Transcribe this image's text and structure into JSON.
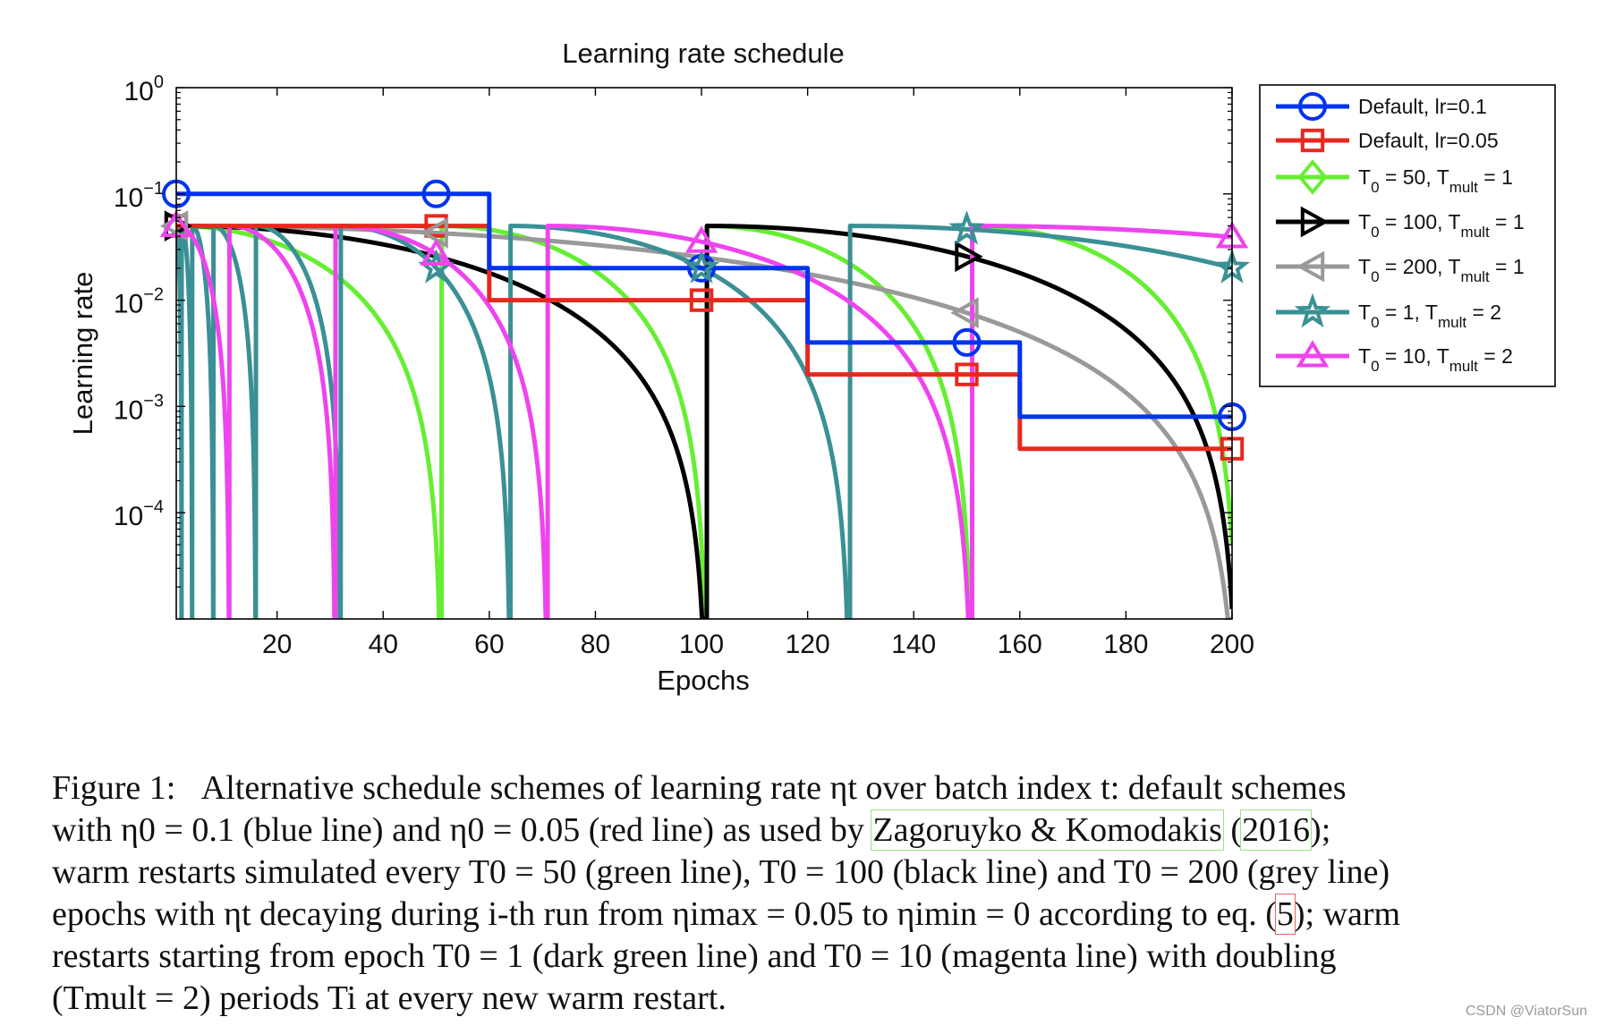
{
  "chart_data": {
    "type": "line",
    "title": "Learning rate schedule",
    "xlabel": "Epochs",
    "ylabel": "Learning rate",
    "xlim": [
      1,
      200
    ],
    "ylim_log10": [
      -5,
      0
    ],
    "yscale": "log",
    "grid": false,
    "legend_position": "outside-right",
    "xticks": [
      "20",
      "40",
      "60",
      "80",
      "100",
      "120",
      "140",
      "160",
      "180",
      "200"
    ],
    "xtick_values": [
      20,
      40,
      60,
      80,
      100,
      120,
      140,
      160,
      180,
      200
    ],
    "yticks": [
      {
        "base": "10",
        "exp": "0",
        "value": 1
      },
      {
        "base": "10",
        "exp": "−1",
        "value": 0.1
      },
      {
        "base": "10",
        "exp": "−2",
        "value": 0.01
      },
      {
        "base": "10",
        "exp": "−3",
        "value": 0.001
      },
      {
        "base": "10",
        "exp": "−4",
        "value": 0.0001
      }
    ],
    "series": [
      {
        "name": "Default, lr=0.1",
        "label_main": "Default, lr=0.1",
        "color": "#0033ee",
        "marker": "circle",
        "kind": "step",
        "steps": [
          [
            1,
            0.1
          ],
          [
            60,
            0.1
          ],
          [
            60,
            0.02
          ],
          [
            120,
            0.02
          ],
          [
            120,
            0.004
          ],
          [
            160,
            0.004
          ],
          [
            160,
            0.0008
          ],
          [
            200,
            0.0008
          ]
        ],
        "markers_at": [
          1,
          50,
          100,
          150,
          200
        ]
      },
      {
        "name": "Default, lr=0.05",
        "label_main": "Default, lr=0.05",
        "color": "#e8281e",
        "marker": "square",
        "kind": "step",
        "steps": [
          [
            1,
            0.05
          ],
          [
            60,
            0.05
          ],
          [
            60,
            0.01
          ],
          [
            120,
            0.01
          ],
          [
            120,
            0.002
          ],
          [
            160,
            0.002
          ],
          [
            160,
            0.0004
          ],
          [
            200,
            0.0004
          ]
        ],
        "markers_at": [
          1,
          50,
          100,
          150,
          200
        ]
      },
      {
        "name": "T0 = 50, Tmult = 1",
        "label_parts": [
          "T",
          "0",
          " = 50, T",
          "mult",
          " = 1"
        ],
        "color": "#66ee33",
        "marker": "diamond",
        "kind": "cosine",
        "eta_max": 0.05,
        "T0": 50,
        "Tmult": 1,
        "markers_at": []
      },
      {
        "name": "T0 = 100, Tmult = 1",
        "label_parts": [
          "T",
          "0",
          " = 100, T",
          "mult",
          " = 1"
        ],
        "color": "#000000",
        "marker": "triangle-right",
        "kind": "cosine",
        "eta_max": 0.05,
        "T0": 100,
        "Tmult": 1,
        "markers_at": [
          1,
          150
        ]
      },
      {
        "name": "T0 = 200, Tmult = 1",
        "label_parts": [
          "T",
          "0",
          " = 200, T",
          "mult",
          " = 1"
        ],
        "color": "#999999",
        "marker": "triangle-left",
        "kind": "cosine",
        "eta_max": 0.05,
        "T0": 200,
        "Tmult": 1,
        "markers_at": [
          1,
          50,
          150
        ]
      },
      {
        "name": "T0 = 1, Tmult = 2",
        "label_parts": [
          "T",
          "0",
          " = 1, T",
          "mult",
          " = 2"
        ],
        "color": "#3a9095",
        "marker": "star",
        "kind": "cosine",
        "eta_max": 0.05,
        "T0": 1,
        "Tmult": 2,
        "markers_at": [
          50,
          100,
          150,
          200
        ]
      },
      {
        "name": "T0 = 10, Tmult = 2",
        "label_parts": [
          "T",
          "0",
          " = 10, T",
          "mult",
          " = 2"
        ],
        "color": "#ee44ee",
        "marker": "triangle-up",
        "kind": "cosine",
        "eta_max": 0.05,
        "T0": 10,
        "Tmult": 2,
        "markers_at": [
          1,
          50,
          100,
          200
        ]
      }
    ]
  },
  "caption": {
    "figure_label": "Figure 1:",
    "text_l1": "Alternative schedule schemes of learning rate ηt over batch index t: default schemes",
    "text_l2a": "with η0 = 0.1 (blue line) and η0 = 0.05 (red line) as used by ",
    "citation_author": "Zagoruyko & Komodakis",
    "citation_year": "2016",
    "text_l2b": ");",
    "text_l3": "warm restarts simulated every T0 = 50 (green line), T0 = 100 (black line) and T0 = 200 (grey line)",
    "text_l4a": "epochs with ηt decaying during i-th run from ηimax = 0.05 to ηimin = 0 according to eq. (",
    "eq_ref": "5",
    "text_l4b": "); warm",
    "text_l5": "restarts starting from epoch T0 = 1 (dark green line) and T0 = 10 (magenta line) with doubling",
    "text_l6": "(Tmult = 2) periods Ti at every new warm restart."
  },
  "watermark": "CSDN @ViatorSun"
}
